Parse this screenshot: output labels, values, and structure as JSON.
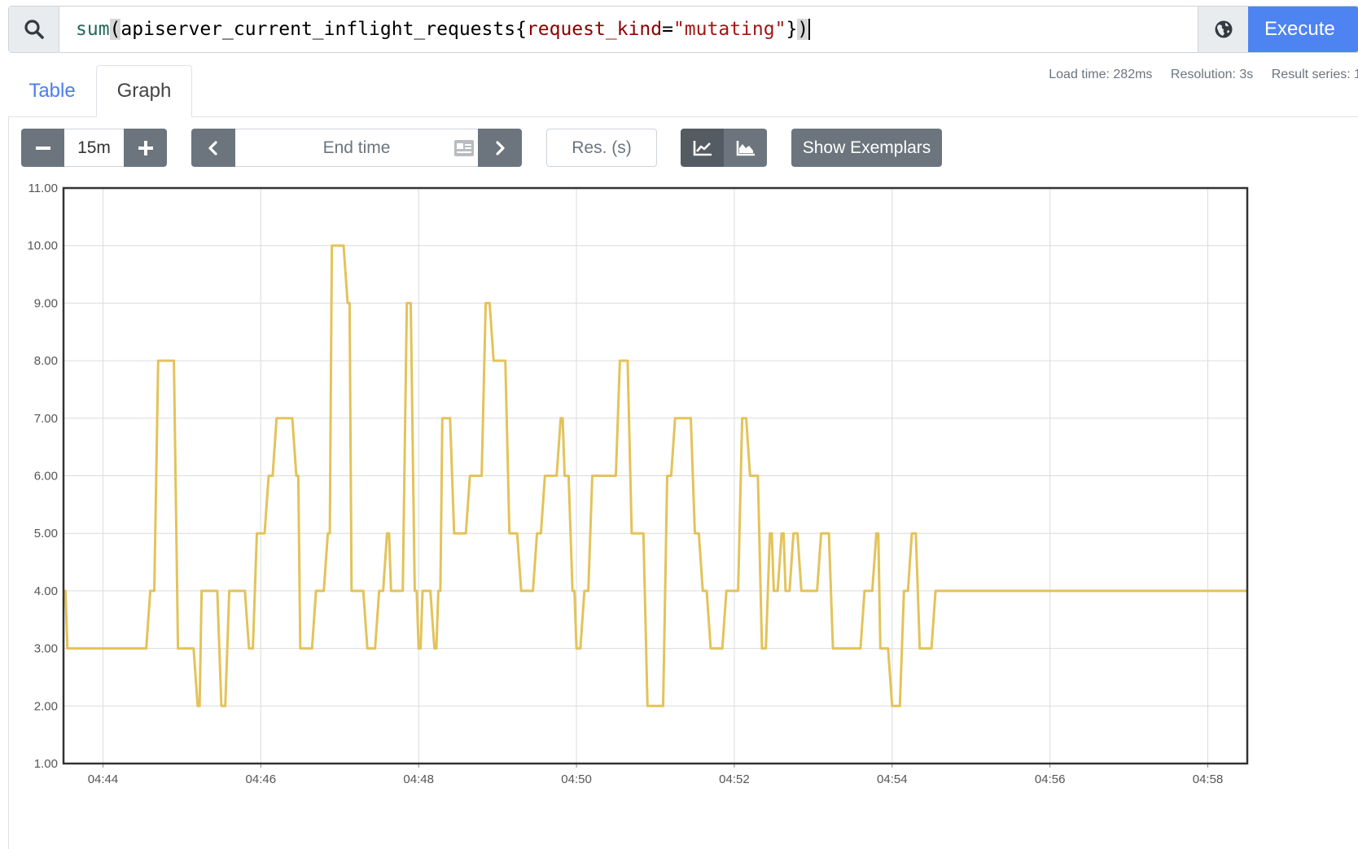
{
  "query": {
    "search_icon": "search-icon",
    "expression_parts": {
      "fn": "sum",
      "open_paren": "(",
      "metric": "apiserver_current_inflight_requests",
      "open_brace": "{",
      "label_name": "request_kind",
      "operator": "=",
      "label_value": "\"mutating\"",
      "close_brace": "}",
      "close_paren": ")"
    },
    "metrics_explorer_icon": "globe-icon",
    "execute_label": "Execute"
  },
  "tabs": [
    {
      "label": "Table",
      "active": false
    },
    {
      "label": "Graph",
      "active": true
    }
  ],
  "stats": {
    "load_time": "Load time: 282ms",
    "resolution": "Resolution: 3s",
    "result_series": "Result series: 1"
  },
  "controls": {
    "range_value": "15m",
    "end_time_placeholder": "End time",
    "resolution_placeholder": "Res. (s)",
    "show_exemplars_label": "Show Exemplars"
  },
  "colors": {
    "accent": "#4e84f2",
    "button_gray": "#6c757d",
    "series": "#e3c35a"
  },
  "chart_data": {
    "type": "line",
    "step": true,
    "grid": true,
    "ylim": [
      1,
      11
    ],
    "yticks": [
      1,
      2,
      3,
      4,
      5,
      6,
      7,
      8,
      9,
      10,
      11
    ],
    "ytick_labels": [
      "1.00",
      "2.00",
      "3.00",
      "4.00",
      "5.00",
      "6.00",
      "7.00",
      "8.00",
      "9.00",
      "10.00",
      "11.00"
    ],
    "xlim": [
      "04:43:30",
      "04:58:30"
    ],
    "xticks": [
      "04:44",
      "04:46",
      "04:48",
      "04:50",
      "04:52",
      "04:54",
      "04:56",
      "04:58"
    ],
    "series": [
      {
        "x": [
          "04:43:30",
          "04:43:33",
          "04:44:36",
          "04:44:42",
          "04:44:57",
          "04:45:00",
          "04:45:12",
          "04:45:15",
          "04:45:30",
          "04:45:36",
          "04:45:51",
          "04:45:57",
          "04:46:06",
          "04:46:12",
          "04:46:27",
          "04:46:30",
          "04:46:42",
          "04:46:51",
          "04:46:54",
          "04:47:06",
          "04:47:09",
          "04:47:21",
          "04:47:30",
          "04:47:36",
          "04:47:39",
          "04:47:51",
          "04:47:57",
          "04:48:00",
          "04:48:03",
          "04:48:12",
          "04:48:15",
          "04:48:18",
          "04:48:27",
          "04:48:39",
          "04:48:51",
          "04:48:57",
          "04:49:09",
          "04:49:18",
          "04:49:30",
          "04:49:36",
          "04:49:48",
          "04:49:51",
          "04:49:57",
          "04:50:00",
          "04:50:06",
          "04:50:12",
          "04:50:33",
          "04:50:42",
          "04:50:54",
          "04:51:09",
          "04:51:15",
          "04:51:30",
          "04:51:36",
          "04:51:42",
          "04:51:54",
          "04:52:06",
          "04:52:12",
          "04:52:21",
          "04:52:27",
          "04:52:30",
          "04:52:36",
          "04:52:39",
          "04:52:45",
          "04:52:51",
          "04:53:06",
          "04:53:15",
          "04:53:39",
          "04:53:48",
          "04:53:51",
          "04:54:00",
          "04:54:09",
          "04:54:15",
          "04:54:21",
          "04:54:33",
          "04:54:45",
          "04:54:54",
          "04:55:06",
          "04:55:15",
          "04:55:24",
          "04:55:33",
          "04:55:39",
          "04:55:45",
          "04:56:00",
          "04:56:09",
          "04:56:24",
          "04:56:39",
          "04:56:51",
          "04:57:09",
          "04:57:21",
          "04:57:36",
          "04:57:48",
          "04:58:06",
          "04:58:21",
          "04:58:30"
        ],
        "values": [
          4,
          3,
          4,
          8,
          3,
          3,
          2,
          4,
          2,
          4,
          3,
          5,
          6,
          7,
          6,
          3,
          4,
          5,
          10,
          9,
          4,
          3,
          4,
          5,
          4,
          9,
          4,
          3,
          4,
          3,
          4,
          7,
          5,
          6,
          9,
          8,
          5,
          4,
          5,
          6,
          7,
          6,
          4,
          3,
          4,
          6,
          8,
          5,
          2,
          6,
          7,
          5,
          4,
          3,
          4,
          7,
          6,
          3,
          5,
          4,
          5,
          4,
          5,
          4,
          5,
          3,
          4,
          5,
          3,
          2,
          4,
          5,
          3,
          4,
          4,
          4,
          4,
          4,
          4,
          4,
          4,
          4,
          4,
          4,
          4,
          4,
          4,
          4,
          4,
          4,
          4,
          4,
          4,
          4
        ]
      }
    ]
  }
}
